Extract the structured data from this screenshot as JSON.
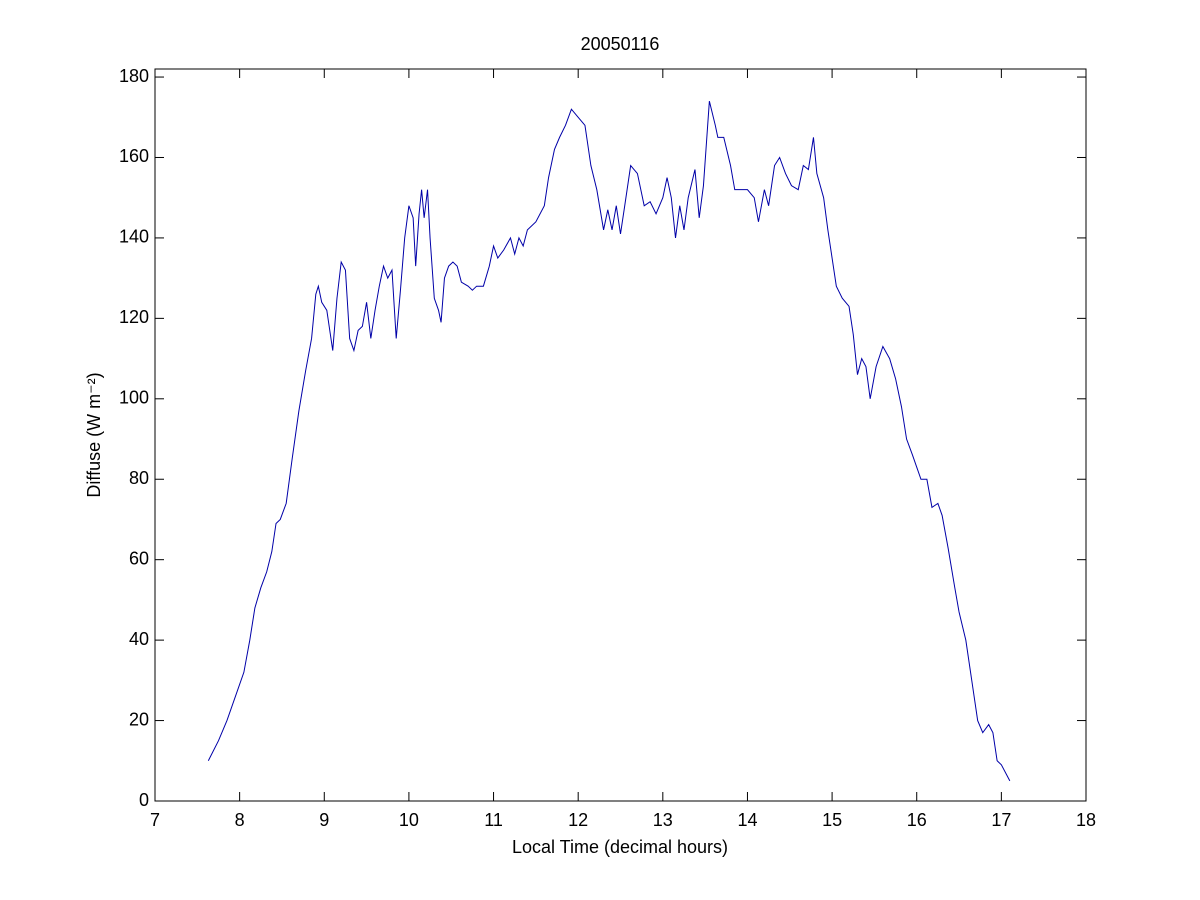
{
  "chart_data": {
    "type": "line",
    "title": "20050116",
    "xlabel": "Local Time (decimal hours)",
    "ylabel": "Diffuse (W m⁻²)",
    "xlim": [
      7,
      18
    ],
    "ylim": [
      0,
      182
    ],
    "xticks": [
      7,
      8,
      9,
      10,
      11,
      12,
      13,
      14,
      15,
      16,
      17,
      18
    ],
    "yticks": [
      0,
      20,
      40,
      60,
      80,
      100,
      120,
      140,
      160,
      180
    ],
    "series": [
      {
        "color": "#0000a8",
        "x": [
          7.63,
          7.75,
          7.85,
          7.95,
          8.05,
          8.12,
          8.18,
          8.25,
          8.32,
          8.38,
          8.43,
          8.48,
          8.55,
          8.62,
          8.7,
          8.78,
          8.85,
          8.9,
          8.93,
          8.97,
          9.03,
          9.1,
          9.15,
          9.2,
          9.25,
          9.3,
          9.35,
          9.4,
          9.45,
          9.5,
          9.55,
          9.6,
          9.65,
          9.7,
          9.75,
          9.8,
          9.85,
          9.9,
          9.95,
          10.0,
          10.05,
          10.08,
          10.12,
          10.15,
          10.18,
          10.22,
          10.25,
          10.3,
          10.35,
          10.38,
          10.42,
          10.47,
          10.52,
          10.57,
          10.62,
          10.7,
          10.75,
          10.8,
          10.88,
          10.95,
          11.0,
          11.05,
          11.12,
          11.2,
          11.25,
          11.3,
          11.35,
          11.4,
          11.5,
          11.6,
          11.65,
          11.72,
          11.78,
          11.85,
          11.92,
          12.0,
          12.08,
          12.15,
          12.22,
          12.3,
          12.35,
          12.4,
          12.45,
          12.5,
          12.55,
          12.62,
          12.7,
          12.78,
          12.85,
          12.92,
          13.0,
          13.05,
          13.1,
          13.15,
          13.2,
          13.25,
          13.3,
          13.38,
          13.43,
          13.48,
          13.55,
          13.62,
          13.65,
          13.72,
          13.8,
          13.85,
          13.92,
          14.0,
          14.08,
          14.13,
          14.2,
          14.25,
          14.32,
          14.38,
          14.45,
          14.52,
          14.6,
          14.66,
          14.72,
          14.78,
          14.82,
          14.9,
          14.95,
          15.0,
          15.05,
          15.12,
          15.2,
          15.25,
          15.3,
          15.35,
          15.4,
          15.45,
          15.52,
          15.6,
          15.68,
          15.75,
          15.82,
          15.88,
          15.95,
          16.0,
          16.05,
          16.12,
          16.18,
          16.25,
          16.3,
          16.37,
          16.45,
          16.5,
          16.58,
          16.65,
          16.72,
          16.78,
          16.85,
          16.9,
          16.95,
          17.0,
          17.1
        ],
        "values": [
          10,
          15,
          20,
          26,
          32,
          40,
          48,
          53,
          57,
          62,
          69,
          70,
          74,
          85,
          97,
          107,
          115,
          126,
          128,
          124,
          122,
          112,
          125,
          134,
          132,
          115,
          112,
          117,
          118,
          124,
          115,
          122,
          128,
          133,
          130,
          132,
          115,
          127,
          140,
          148,
          145,
          133,
          146,
          152,
          145,
          152,
          140,
          125,
          122,
          119,
          130,
          133,
          134,
          133,
          129,
          128,
          127,
          128,
          128,
          133,
          138,
          135,
          137,
          140,
          136,
          140,
          138,
          142,
          144,
          148,
          155,
          162,
          165,
          168,
          172,
          170,
          168,
          158,
          152,
          142,
          147,
          142,
          148,
          141,
          148,
          158,
          156,
          148,
          149,
          146,
          150,
          155,
          150,
          140,
          148,
          142,
          150,
          157,
          145,
          153,
          174,
          168,
          165,
          165,
          158,
          152,
          152,
          152,
          150,
          144,
          152,
          148,
          158,
          160,
          156,
          153,
          152,
          158,
          157,
          165,
          156,
          150,
          142,
          135,
          128,
          125,
          123,
          116,
          106,
          110,
          108,
          100,
          108,
          113,
          110,
          105,
          98,
          90,
          86,
          83,
          80,
          80,
          73,
          74,
          71,
          63,
          53,
          47,
          40,
          30,
          20,
          17,
          19,
          17,
          10,
          9,
          5
        ]
      }
    ]
  }
}
